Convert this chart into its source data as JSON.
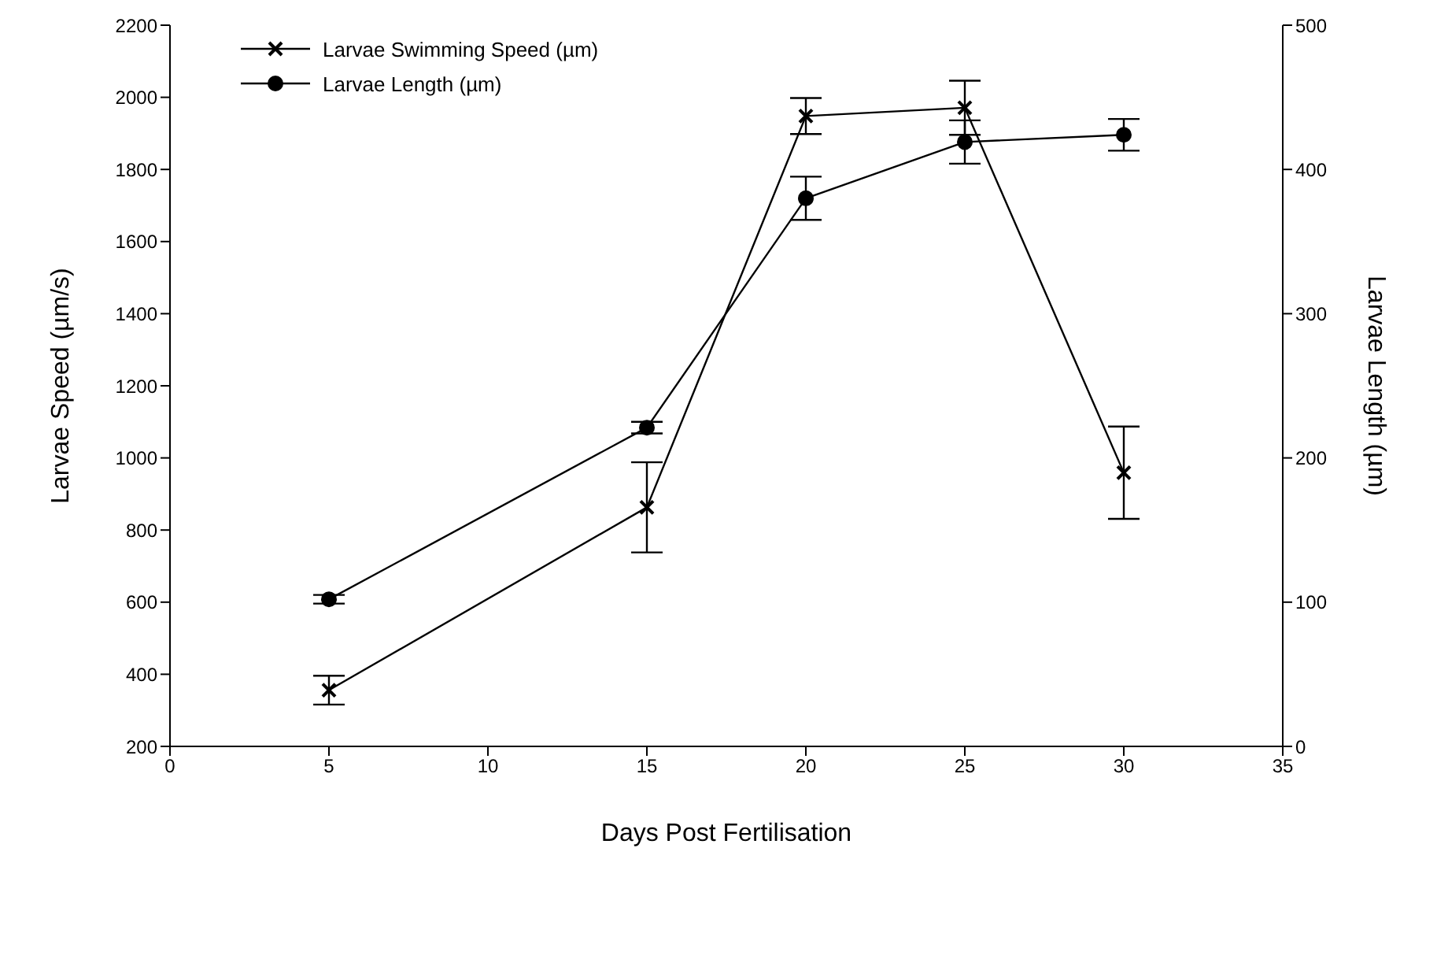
{
  "chart_data": {
    "type": "line",
    "xlabel": "Days Post Fertilisation",
    "ylabel": "Larvae Speed (µm/s)",
    "y2label": "Larvae Length (µm)",
    "x": [
      5,
      15,
      20,
      25,
      30
    ],
    "series": [
      {
        "name": "Larvae Swimming Speed (µm)",
        "color": "#000000",
        "marker": "cross",
        "values": [
          356,
          863,
          1948,
          1971,
          959
        ],
        "errors": [
          40,
          125,
          50,
          75,
          128
        ]
      },
      {
        "name": "Larvae Length (µm)",
        "color": "#000000",
        "marker": "circle",
        "axis": "y2",
        "values": [
          102,
          221,
          380,
          419,
          424
        ],
        "errors": [
          3,
          4,
          15,
          15,
          11
        ]
      }
    ],
    "xlim": [
      0,
      35
    ],
    "xticks": [
      0,
      5,
      10,
      15,
      20,
      25,
      30,
      35
    ],
    "ylim": [
      200,
      2200
    ],
    "yticks": [
      200,
      400,
      600,
      800,
      1000,
      1200,
      1400,
      1600,
      1800,
      2000,
      2200
    ],
    "y2lim": [
      0,
      500
    ],
    "y2ticks": [
      0,
      100,
      200,
      300,
      400,
      500
    ],
    "grid": false,
    "legend": "top left",
    "line_style": "solid"
  }
}
